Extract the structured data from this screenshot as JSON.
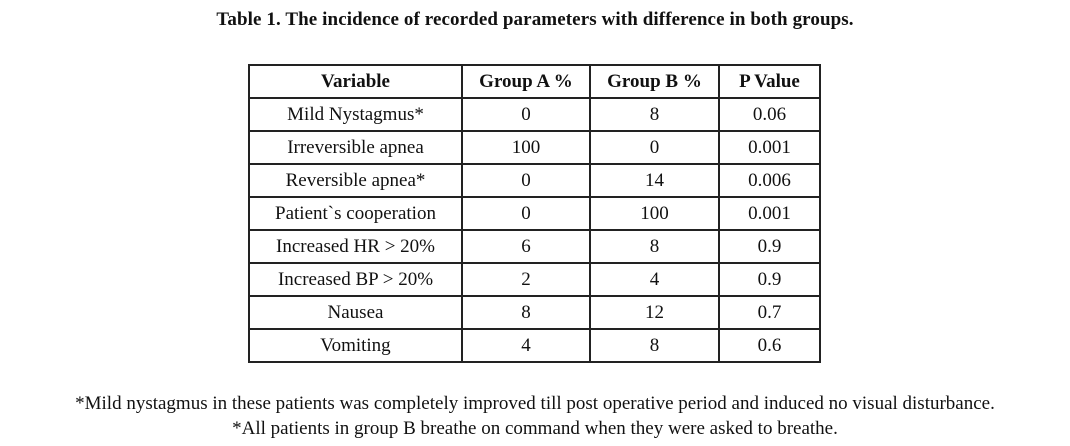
{
  "caption": "Table 1. The incidence of recorded parameters with difference in both groups.",
  "table": {
    "headers": [
      "Variable",
      "Group A %",
      "Group B %",
      "P  Value"
    ],
    "rows": [
      [
        "Mild Nystagmus*",
        "0",
        "8",
        "0.06"
      ],
      [
        "Irreversible apnea",
        "100",
        "0",
        "0.001"
      ],
      [
        "Reversible apnea*",
        "0",
        "14",
        "0.006"
      ],
      [
        "Patient`s cooperation",
        "0",
        "100",
        "0.001"
      ],
      [
        "Increased HR > 20%",
        "6",
        "8",
        "0.9"
      ],
      [
        "Increased BP > 20%",
        "2",
        "4",
        "0.9"
      ],
      [
        "Nausea",
        "8",
        "12",
        "0.7"
      ],
      [
        "Vomiting",
        "4",
        "8",
        "0.6"
      ]
    ]
  },
  "footnotes": [
    "*Mild nystagmus in these patients was completely improved till post operative period and induced no visual disturbance.",
    "*All patients in group B breathe on command when they were asked to breathe."
  ]
}
